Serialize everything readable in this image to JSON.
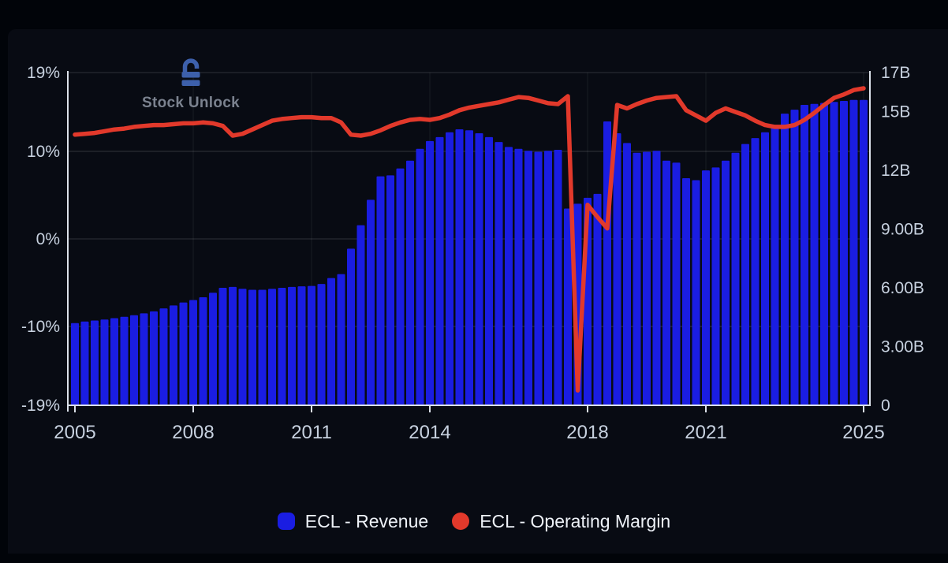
{
  "watermark": {
    "text": "Stock Unlock"
  },
  "legend": {
    "items": [
      {
        "label": "ECL - Revenue",
        "swatch": "square",
        "color_key": "bar_blue"
      },
      {
        "label": "ECL - Operating Margin",
        "swatch": "circle",
        "color_key": "line_red"
      }
    ]
  },
  "colors": {
    "outer_bg": "#010409",
    "panel_bg": "#080b13",
    "bar_blue": "#1a1de2",
    "line_red": "#e2392b",
    "grid_line": "rgba(255,255,255,0.13)",
    "grid_line_vertical": "rgba(255,255,255,0.06)",
    "axis_line": "#dbe1ea",
    "tick_text": "#c7d1df",
    "legend_text": "#eef2f8",
    "watermark_text": "#7b828f",
    "watermark_icon": "#3d60ab"
  },
  "chart_data": {
    "type": "combo",
    "title": "",
    "x_unit": "year (quarterly)",
    "x": [
      2005,
      2005.25,
      2005.5,
      2005.75,
      2006,
      2006.25,
      2006.5,
      2006.75,
      2007,
      2007.25,
      2007.5,
      2007.75,
      2008,
      2008.25,
      2008.5,
      2008.75,
      2009,
      2009.25,
      2009.5,
      2009.75,
      2010,
      2010.25,
      2010.5,
      2010.75,
      2011,
      2011.25,
      2011.5,
      2011.75,
      2012,
      2012.25,
      2012.5,
      2012.75,
      2013,
      2013.25,
      2013.5,
      2013.75,
      2014,
      2014.25,
      2014.5,
      2014.75,
      2015,
      2015.25,
      2015.5,
      2015.75,
      2016,
      2016.25,
      2016.5,
      2016.75,
      2017,
      2017.25,
      2017.5,
      2017.75,
      2018,
      2018.25,
      2018.5,
      2018.75,
      2019,
      2019.25,
      2019.5,
      2019.75,
      2020,
      2020.25,
      2020.5,
      2020.75,
      2021,
      2021.25,
      2021.5,
      2021.75,
      2022,
      2022.25,
      2022.5,
      2022.75,
      2023,
      2023.25,
      2023.5,
      2023.75,
      2024,
      2024.25,
      2024.5,
      2024.75,
      2025
    ],
    "series": [
      {
        "name": "ECL - Revenue",
        "type": "bar",
        "axis": "right",
        "unit": "B USD",
        "values": [
          4.2,
          4.28,
          4.33,
          4.38,
          4.45,
          4.52,
          4.6,
          4.7,
          4.8,
          4.95,
          5.1,
          5.25,
          5.38,
          5.52,
          5.75,
          6.0,
          6.05,
          5.95,
          5.9,
          5.9,
          5.95,
          6.0,
          6.05,
          6.08,
          6.1,
          6.2,
          6.5,
          6.7,
          8.0,
          9.2,
          10.5,
          11.7,
          11.75,
          12.1,
          12.5,
          13.1,
          13.5,
          13.7,
          13.95,
          14.1,
          14.05,
          13.9,
          13.7,
          13.45,
          13.2,
          13.1,
          13.0,
          12.95,
          13.0,
          13.05,
          10.05,
          10.3,
          10.6,
          10.8,
          14.5,
          13.9,
          13.4,
          12.9,
          12.95,
          13.0,
          12.5,
          12.4,
          11.6,
          11.5,
          12.0,
          12.15,
          12.5,
          12.9,
          13.35,
          13.65,
          13.95,
          14.2,
          14.9,
          15.1,
          15.35,
          15.4,
          15.45,
          15.5,
          15.55,
          15.6,
          15.6
        ]
      },
      {
        "name": "ECL - Operating Margin",
        "type": "line",
        "axis": "left",
        "unit": "%",
        "values": [
          11.9,
          12.0,
          12.1,
          12.3,
          12.5,
          12.6,
          12.8,
          12.9,
          13.0,
          13.0,
          13.1,
          13.2,
          13.2,
          13.3,
          13.2,
          12.9,
          11.8,
          12.0,
          12.5,
          13.0,
          13.5,
          13.7,
          13.8,
          13.9,
          13.9,
          13.8,
          13.8,
          13.3,
          11.9,
          11.8,
          12.0,
          12.4,
          12.9,
          13.3,
          13.6,
          13.7,
          13.6,
          13.8,
          14.2,
          14.7,
          15.0,
          15.2,
          15.4,
          15.6,
          15.9,
          16.2,
          16.1,
          15.8,
          15.5,
          15.4,
          16.3,
          -17.3,
          3.9,
          2.5,
          1.2,
          15.3,
          14.9,
          15.4,
          15.8,
          16.1,
          16.2,
          16.3,
          14.7,
          14.1,
          13.5,
          14.4,
          14.9,
          14.5,
          14.1,
          13.5,
          13.0,
          12.8,
          12.8,
          13.0,
          13.6,
          14.4,
          15.3,
          16.1,
          16.5,
          17.0,
          17.2
        ]
      }
    ],
    "axes": {
      "left": {
        "min": -19,
        "max": 19,
        "ticks": [
          {
            "label": "19%",
            "value": 19
          },
          {
            "label": "10%",
            "value": 10
          },
          {
            "label": "0%",
            "value": 0
          },
          {
            "label": "-10%",
            "value": -10
          },
          {
            "label": "-19%",
            "value": -19
          }
        ]
      },
      "right": {
        "min": 0,
        "max": 17,
        "ticks": [
          {
            "label": "17B",
            "value": 17
          },
          {
            "label": "15B",
            "value": 15
          },
          {
            "label": "12B",
            "value": 12
          },
          {
            "label": "9.00B",
            "value": 9
          },
          {
            "label": "6.00B",
            "value": 6
          },
          {
            "label": "3.00B",
            "value": 3
          },
          {
            "label": "0",
            "value": 0
          }
        ]
      },
      "x": {
        "min": 2005,
        "max": 2025,
        "ticks": [
          {
            "label": "2005",
            "value": 2005
          },
          {
            "label": "2008",
            "value": 2008
          },
          {
            "label": "2011",
            "value": 2011
          },
          {
            "label": "2014",
            "value": 2014
          },
          {
            "label": "2018",
            "value": 2018
          },
          {
            "label": "2021",
            "value": 2021
          },
          {
            "label": "2025",
            "value": 2025
          }
        ]
      }
    },
    "grid": {
      "horizontal_at": [
        19,
        10,
        0,
        -10
      ],
      "vertical_at": [
        2008,
        2011,
        2014,
        2018,
        2021,
        2025
      ]
    },
    "legend_position": "bottom"
  }
}
